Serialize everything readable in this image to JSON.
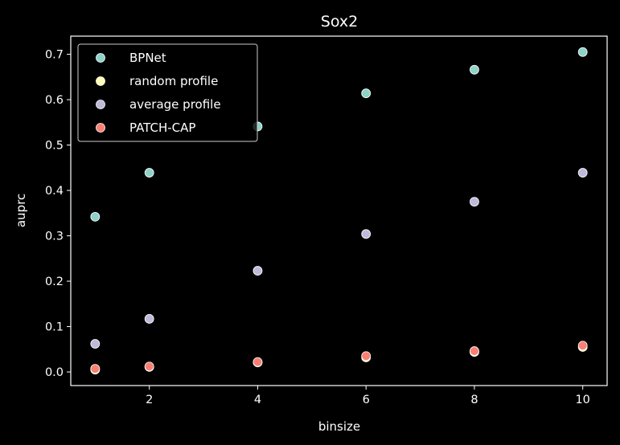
{
  "chart_data": {
    "type": "scatter",
    "title": "Sox2",
    "xlabel": "binsize",
    "ylabel": "auprc",
    "xlim": [
      0.55,
      10.45
    ],
    "ylim": [
      -0.03,
      0.74
    ],
    "xticks": [
      2,
      4,
      6,
      8,
      10
    ],
    "xtick_labels": [
      "2",
      "4",
      "6",
      "8",
      "10"
    ],
    "yticks": [
      0.0,
      0.1,
      0.2,
      0.3,
      0.4,
      0.5,
      0.6,
      0.7
    ],
    "ytick_labels": [
      "0.0",
      "0.1",
      "0.2",
      "0.3",
      "0.4",
      "0.5",
      "0.6",
      "0.7"
    ],
    "grid": false,
    "legend_position": "top-left",
    "x": [
      1,
      2,
      4,
      6,
      8,
      10
    ],
    "series": [
      {
        "name": "BPNet",
        "color": "#8dd3c7",
        "values": [
          0.342,
          0.439,
          0.541,
          0.614,
          0.666,
          0.705
        ]
      },
      {
        "name": "random profile",
        "color": "#ffffb3",
        "values": [
          0.005,
          0.011,
          0.021,
          0.032,
          0.044,
          0.055
        ]
      },
      {
        "name": "average profile",
        "color": "#bebada",
        "values": [
          0.062,
          0.117,
          0.223,
          0.304,
          0.375,
          0.439
        ]
      },
      {
        "name": "PATCH-CAP",
        "color": "#fb8072",
        "values": [
          0.007,
          0.012,
          0.022,
          0.035,
          0.046,
          0.058
        ]
      }
    ]
  }
}
